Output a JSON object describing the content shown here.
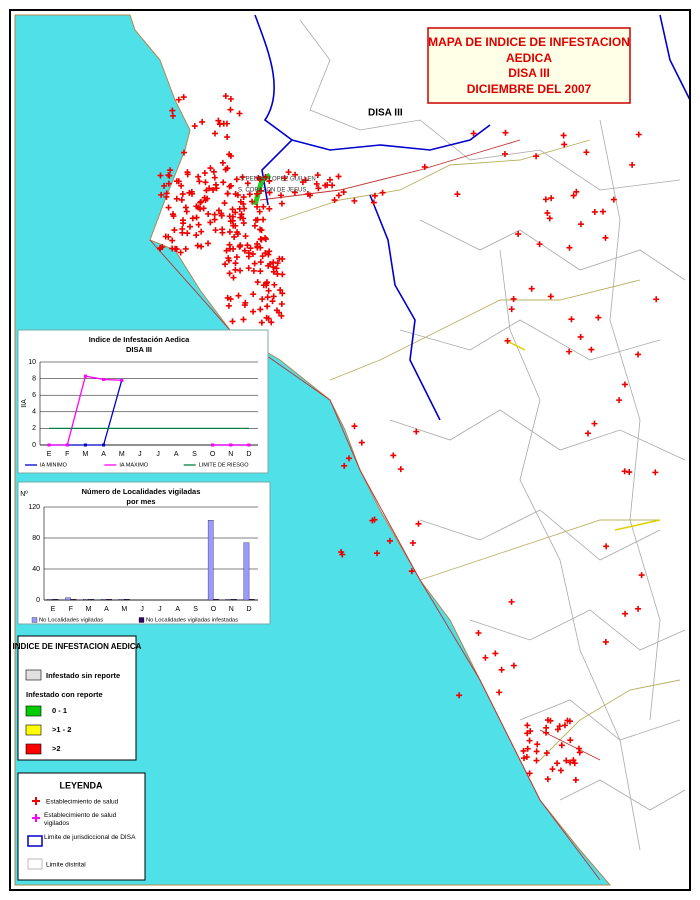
{
  "map": {
    "title": [
      "MAPA DE INDICE DE INFESTACION",
      "AEDICA",
      "DISA III",
      "DICIEMBRE DEL 2007"
    ],
    "labels": [
      "DISA III",
      "S.PEDRO LOPEZ GUILLEN",
      "S. CORAZON DE JESUS"
    ]
  },
  "chart_data": [
    {
      "type": "line",
      "title": "Indice de Infestación Aedica",
      "subtitle": "DISA III",
      "y_label": "IIA",
      "categories": [
        "E",
        "F",
        "M",
        "A",
        "M",
        "J",
        "J",
        "A",
        "S",
        "O",
        "N",
        "D"
      ],
      "series": [
        {
          "name": "IA MINIMO",
          "color": "#0000cc",
          "values": [
            0,
            0,
            0,
            0,
            7.8,
            null,
            null,
            null,
            null,
            0,
            0,
            0
          ]
        },
        {
          "name": "IA MAXIMO",
          "color": "#ff00ff",
          "values": [
            0,
            0,
            8.3,
            7.9,
            7.8,
            null,
            null,
            null,
            null,
            0,
            0,
            0
          ]
        },
        {
          "name": "LIMITE DE RIESGO",
          "color": "#008040",
          "values": [
            2,
            2,
            2,
            2,
            2,
            2,
            2,
            2,
            2,
            2,
            2,
            2
          ]
        }
      ],
      "ylim": [
        0,
        10
      ],
      "yticks": [
        0,
        2,
        4,
        6,
        8,
        10
      ],
      "grid": true
    },
    {
      "type": "bar",
      "title": "Número de Localidades vigiladas",
      "subtitle": "por mes",
      "y_label": "Nº",
      "categories": [
        "E",
        "F",
        "M",
        "A",
        "M",
        "J",
        "J",
        "A",
        "S",
        "O",
        "N",
        "D"
      ],
      "series": [
        {
          "name": "No Localidades vigiladas",
          "color": "#9999ff",
          "values": [
            1,
            3,
            1,
            1,
            1,
            0,
            0,
            0,
            0,
            103,
            1,
            74
          ]
        },
        {
          "name": "No Localidades vigiladas infestadas",
          "color": "#330066",
          "values": [
            1,
            1,
            1,
            1,
            1,
            0,
            0,
            0,
            0,
            1,
            1,
            1
          ]
        }
      ],
      "ylim": [
        0,
        120
      ],
      "yticks": [
        0,
        40,
        80,
        120
      ],
      "grid": true
    }
  ],
  "index_legend": {
    "title": "INDICE DE INFESTACION AEDICA",
    "no_report": {
      "label": "Infestado sin reporte",
      "color": "#e0e0e0"
    },
    "with_report": "Infestado con reporte",
    "items": [
      {
        "label": "0 - 1",
        "color": "#00cc00"
      },
      {
        "label": ">1 - 2",
        "color": "#ffff00"
      },
      {
        "label": ">2",
        "color": "#ff0000"
      }
    ]
  },
  "legend": {
    "title": "LEYENDA",
    "items": [
      "Establecimiento de salud",
      "Establecimiento de salud vigilados",
      "Limite de jurisdiccional de DISA",
      "Limite distrital"
    ]
  }
}
